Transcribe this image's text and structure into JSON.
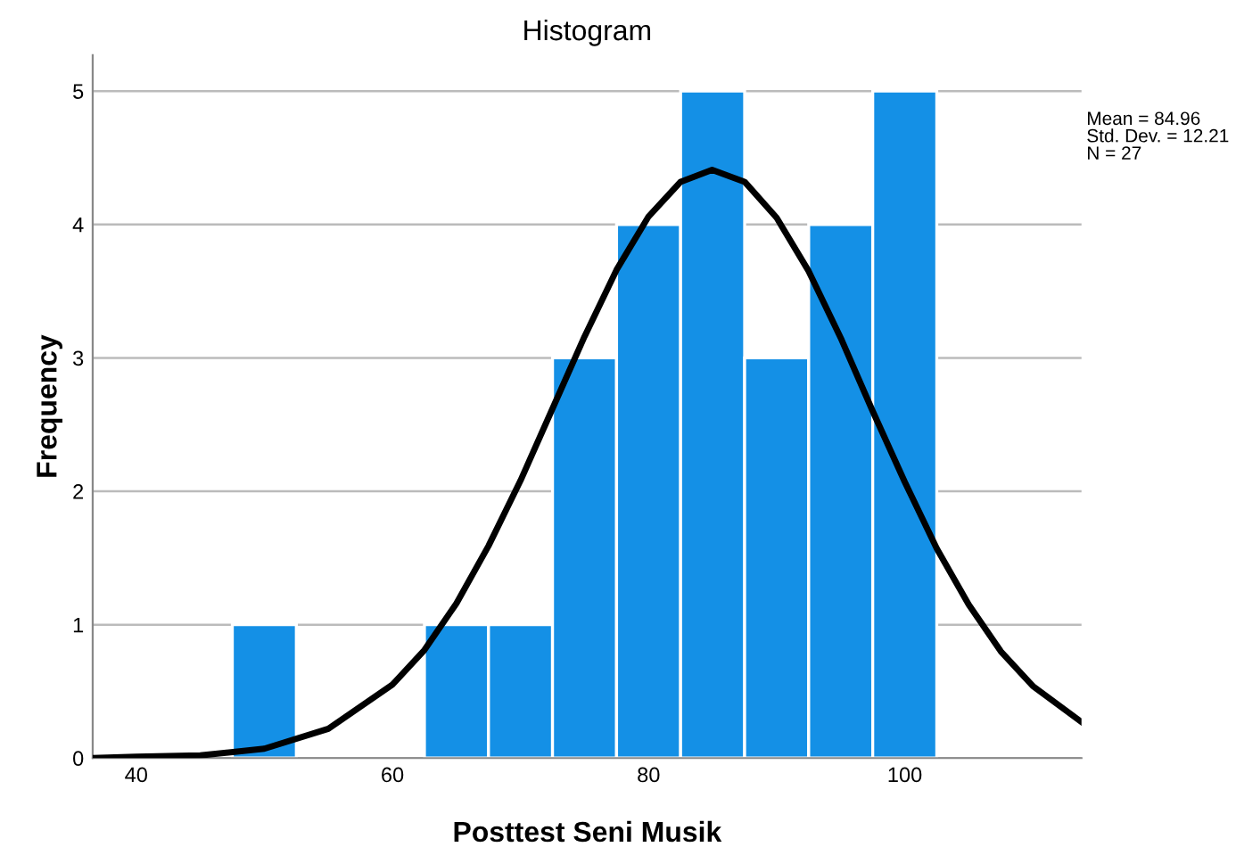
{
  "chart_data": {
    "type": "histogram",
    "title": "Histogram",
    "xlabel": "Posttest Seni Musik",
    "ylabel": "Frequency",
    "bins": [
      47.5,
      52.5,
      57.5,
      62.5,
      67.5,
      72.5,
      77.5,
      82.5,
      87.5,
      92.5,
      97.5,
      102.5
    ],
    "values": [
      1,
      0,
      0,
      1,
      1,
      3,
      4,
      5,
      3,
      4,
      5
    ],
    "color": "#1490e6",
    "series": [
      {
        "type": "line",
        "color": "#000000",
        "x": [
          36.6,
          40,
          45,
          50,
          55,
          60,
          62.5,
          65,
          67.5,
          70,
          72.5,
          75,
          77.5,
          80,
          82.5,
          84.96,
          87.5,
          90,
          92.5,
          95,
          97.5,
          100,
          102.5,
          105,
          107.5,
          110,
          113.8
        ],
        "values": [
          0.0,
          0.01,
          0.02,
          0.07,
          0.22,
          0.55,
          0.81,
          1.16,
          1.59,
          2.08,
          2.62,
          3.16,
          3.66,
          4.06,
          4.32,
          4.41,
          4.32,
          4.05,
          3.65,
          3.15,
          2.6,
          2.07,
          1.57,
          1.15,
          0.8,
          0.54,
          0.27
        ]
      }
    ],
    "xlim": [
      36.6,
      113.8
    ],
    "ylim": [
      0,
      5.27
    ],
    "xticks": [
      40,
      60,
      80,
      100
    ],
    "yticks": [
      0,
      1,
      2,
      3,
      4,
      5
    ],
    "grid": "y",
    "annotations": [
      "Mean = 84.96\nStd. Dev. = 12.21\nN = 27"
    ]
  }
}
